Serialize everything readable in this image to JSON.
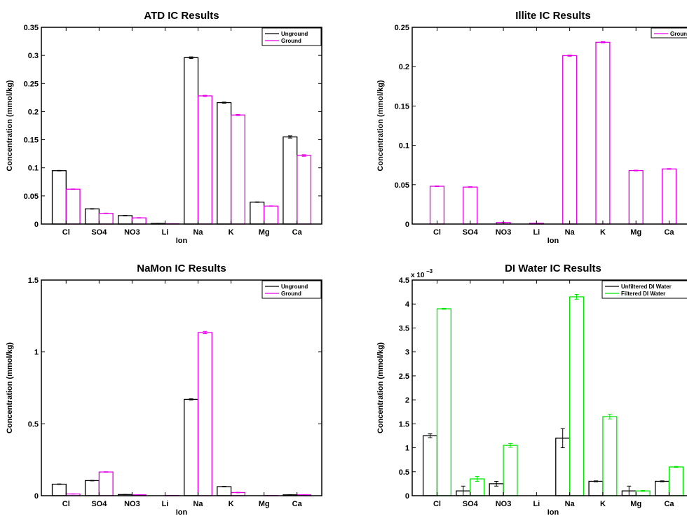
{
  "chart_data": [
    {
      "type": "bar",
      "title": "ATD IC Results",
      "xlabel": "Ion",
      "ylabel": "Concentration (mmol/kg)",
      "categories": [
        "Cl",
        "SO4",
        "NO3",
        "Li",
        "Na",
        "K",
        "Mg",
        "Ca"
      ],
      "ylim": [
        0,
        0.35
      ],
      "yticks": [
        "0",
        "0.05",
        "0.1",
        "0.15",
        "0.2",
        "0.25",
        "0.3",
        "0.35"
      ],
      "legend_position": "top-right",
      "series": [
        {
          "name": "Unground",
          "color": "#000000",
          "values": [
            0.095,
            0.027,
            0.015,
            0.001,
            0.296,
            0.216,
            0.039,
            0.155
          ],
          "errors": [
            0.0005,
            0.0005,
            0.0005,
            0.0003,
            0.0015,
            0.001,
            0.0005,
            0.002
          ]
        },
        {
          "name": "Ground",
          "color": "#e600e6",
          "values": [
            0.062,
            0.019,
            0.011,
            0.0005,
            0.228,
            0.194,
            0.032,
            0.122
          ],
          "errors": [
            0.0005,
            0.0005,
            0.0005,
            0.0002,
            0.001,
            0.001,
            0.0005,
            0.0015
          ]
        }
      ]
    },
    {
      "type": "bar",
      "title": "Illite IC Results",
      "xlabel": "Ion",
      "ylabel": "Concentration (mmol/kg)",
      "categories": [
        "Cl",
        "SO4",
        "NO3",
        "Li",
        "Na",
        "K",
        "Mg",
        "Ca"
      ],
      "ylim": [
        0,
        0.25
      ],
      "yticks": [
        "0",
        "0.05",
        "0.1",
        "0.15",
        "0.2",
        "0.25"
      ],
      "legend_position": "top-right",
      "series": [
        {
          "name": "Ground",
          "color": "#e600e6",
          "values": [
            0.048,
            0.047,
            0.002,
            0.001,
            0.214,
            0.231,
            0.068,
            0.07
          ],
          "errors": [
            0.0005,
            0.0005,
            0.0003,
            0.0002,
            0.0008,
            0.0008,
            0.0005,
            0.0005
          ]
        }
      ]
    },
    {
      "type": "bar",
      "title": "NaMon IC Results",
      "xlabel": "Ion",
      "ylabel": "Concentration (mmol/kg)",
      "categories": [
        "Cl",
        "SO4",
        "NO3",
        "Li",
        "Na",
        "K",
        "Mg",
        "Ca"
      ],
      "ylim": [
        0,
        1.5
      ],
      "yticks": [
        "0",
        "0.5",
        "1",
        "1.5"
      ],
      "legend_position": "top-right",
      "series": [
        {
          "name": "Unground",
          "color": "#000000",
          "values": [
            0.08,
            0.105,
            0.008,
            0,
            0.67,
            0.063,
            0,
            0.006
          ],
          "errors": [
            0.002,
            0.002,
            0.001,
            0,
            0.004,
            0.002,
            0,
            0.001
          ]
        },
        {
          "name": "Ground",
          "color": "#e600e6",
          "values": [
            0.012,
            0.165,
            0.006,
            0.002,
            1.135,
            0.022,
            0.001,
            0.006
          ],
          "errors": [
            0.001,
            0.002,
            0.001,
            0,
            0.008,
            0.002,
            0,
            0.001
          ]
        }
      ]
    },
    {
      "type": "bar",
      "title": "DI Water IC Results",
      "xlabel": "Ion",
      "ylabel": "Concentration (mmol/kg)",
      "categories": [
        "Cl",
        "SO4",
        "NO3",
        "Li",
        "Na",
        "K",
        "Mg",
        "Ca"
      ],
      "ylim": [
        0,
        4.5
      ],
      "yticks": [
        "0",
        "0.5",
        "1",
        "1.5",
        "2",
        "2.5",
        "3",
        "3.5",
        "4",
        "4.5"
      ],
      "y_multiplier": "x 10",
      "y_multiplier_exponent": "−3",
      "legend_position": "top-right",
      "series": [
        {
          "name": "Unfiltered DI Water",
          "color": "#000000",
          "values": [
            1.25,
            0.1,
            0.25,
            0,
            1.2,
            0.3,
            0.1,
            0.3
          ],
          "errors": [
            0.04,
            0.1,
            0.05,
            0,
            0.2,
            0.01,
            0.1,
            0.01
          ]
        },
        {
          "name": "Filtered DI Water",
          "color": "#00e600",
          "values": [
            3.9,
            0.35,
            1.05,
            0,
            4.15,
            1.65,
            0.1,
            0.6
          ],
          "errors": [
            0.01,
            0.05,
            0.04,
            0,
            0.05,
            0.05,
            0.01,
            0.01
          ]
        }
      ]
    }
  ]
}
